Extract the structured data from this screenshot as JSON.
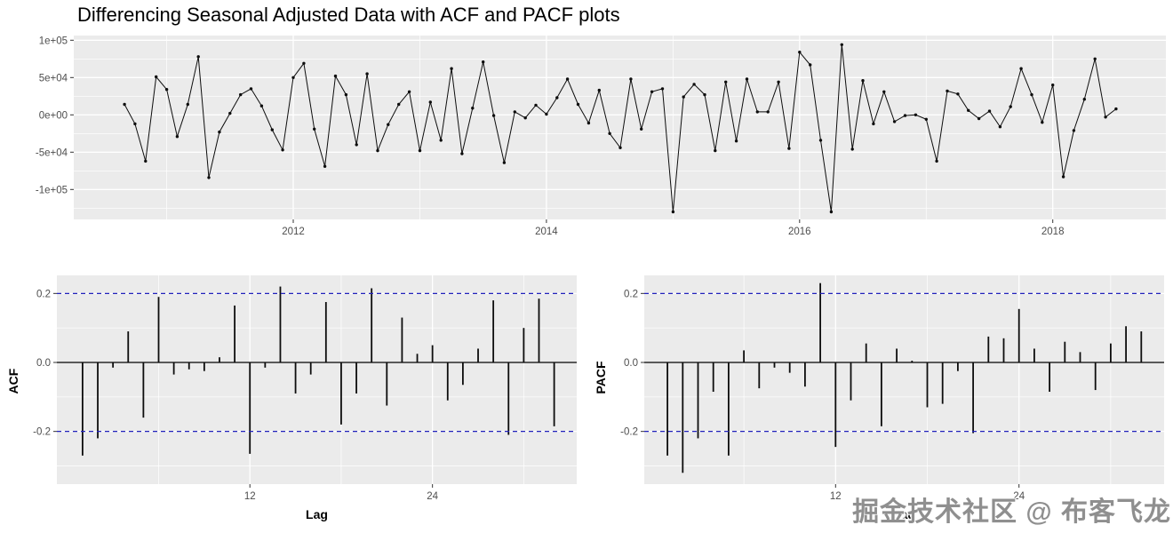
{
  "title": "Differencing Seasonal Adjusted Data with ACF and PACF plots",
  "watermark": "掘金技术社区 @ 布客飞龙",
  "colors": {
    "panel_bg": "#ebebeb",
    "grid_major": "#ffffff",
    "grid_minor": "#f7f7f7",
    "series": "#0d0d0d",
    "conf_dashed": "#2222bb",
    "zero_line": "#000000",
    "tick_text": "#4d4d4d",
    "tick_mark": "#333333",
    "axis_title_text": "#000000",
    "watermark_text": "#8f8f8f"
  },
  "chart_data": [
    {
      "id": "diff-series",
      "type": "line",
      "title": "Differencing Seasonal Adjusted Data with ACF and PACF plots",
      "xlabel": "",
      "ylabel": "",
      "x_start_year": 2010.6667,
      "x_step_years": 0.0833333,
      "x_tick_labels": [
        "2012",
        "2014",
        "2016",
        "2018"
      ],
      "x_tick_values": [
        2012,
        2014,
        2016,
        2018
      ],
      "x_minor_tick_values": [
        2011,
        2013,
        2015,
        2017
      ],
      "y_tick_labels": [
        "1e+05",
        "5e+04",
        "0e+00",
        "-5e+04",
        "-1e+05"
      ],
      "y_tick_values": [
        100000,
        50000,
        0,
        -50000,
        -100000
      ],
      "y_minor_tick_values": [
        75000,
        25000,
        -25000,
        -75000,
        -125000
      ],
      "ylim": [
        -138000,
        106000
      ],
      "grid": true,
      "marker": "point",
      "values": [
        14000,
        -12000,
        -62000,
        51000,
        34000,
        -29000,
        14000,
        78000,
        -84000,
        -23000,
        2000,
        27000,
        35000,
        12000,
        -20000,
        -47000,
        50000,
        69000,
        -19000,
        -69000,
        52000,
        27000,
        -40000,
        55000,
        -48000,
        -13000,
        14000,
        31000,
        -48000,
        17000,
        -34000,
        62000,
        -52000,
        9000,
        71000,
        -1000,
        -64000,
        4000,
        -4000,
        13000,
        1000,
        23000,
        48000,
        14000,
        -11000,
        33000,
        -25000,
        -44000,
        48000,
        -19000,
        31000,
        35000,
        -130000,
        24000,
        41000,
        27000,
        -48000,
        44000,
        -35000,
        48000,
        4000,
        4000,
        44000,
        -45000,
        84000,
        67000,
        -34000,
        -130000,
        94000,
        -46000,
        46000,
        -12000,
        31000,
        -9000,
        -1000,
        0,
        -6000,
        -62000,
        32000,
        28000,
        6000,
        -5000,
        5000,
        -16000,
        11000,
        62000,
        27000,
        -10000,
        40000,
        -83000,
        -21000,
        21000,
        75000,
        -3000,
        8000
      ]
    },
    {
      "id": "acf",
      "type": "bar",
      "xlabel": "Lag",
      "ylabel": "ACF",
      "x_tick_labels": [
        "12",
        "24"
      ],
      "x_tick_values": [
        12,
        24
      ],
      "x_minor_tick_values": [
        6,
        18,
        30
      ],
      "y_tick_labels": [
        "0.2",
        "0.0",
        "-0.2"
      ],
      "y_tick_values": [
        0.2,
        0.0,
        -0.2
      ],
      "y_minor_tick_values": [
        0.1,
        -0.1,
        -0.3
      ],
      "ylim": [
        -0.35,
        0.25
      ],
      "conf_bounds": [
        0.2,
        -0.2
      ],
      "lag_start": 1,
      "values": [
        -0.27,
        -0.22,
        -0.015,
        0.09,
        -0.16,
        0.19,
        -0.035,
        -0.02,
        -0.025,
        0.015,
        0.165,
        -0.265,
        -0.015,
        0.22,
        -0.09,
        -0.035,
        0.175,
        -0.18,
        -0.09,
        0.215,
        -0.125,
        0.13,
        0.025,
        0.05,
        -0.11,
        -0.065,
        0.04,
        0.18,
        -0.21,
        0.1,
        0.185,
        -0.185
      ]
    },
    {
      "id": "pacf",
      "type": "bar",
      "xlabel": "Lag",
      "ylabel": "PACF",
      "x_tick_labels": [
        "12",
        "24"
      ],
      "x_tick_values": [
        12,
        24
      ],
      "x_minor_tick_values": [
        6,
        18,
        30
      ],
      "y_tick_labels": [
        "0.2",
        "0.0",
        "-0.2"
      ],
      "y_tick_values": [
        0.2,
        0.0,
        -0.2
      ],
      "y_minor_tick_values": [
        0.1,
        -0.1,
        -0.3
      ],
      "ylim": [
        -0.35,
        0.25
      ],
      "conf_bounds": [
        0.2,
        -0.2
      ],
      "lag_start": 1,
      "values": [
        -0.27,
        -0.32,
        -0.22,
        -0.085,
        -0.27,
        0.035,
        -0.075,
        -0.015,
        -0.03,
        -0.07,
        0.23,
        -0.245,
        -0.11,
        0.055,
        -0.185,
        0.04,
        0.005,
        -0.13,
        -0.12,
        -0.025,
        -0.205,
        0.075,
        0.07,
        0.155,
        0.04,
        -0.085,
        0.06,
        0.03,
        -0.08,
        0.055,
        0.105,
        0.09
      ]
    }
  ]
}
